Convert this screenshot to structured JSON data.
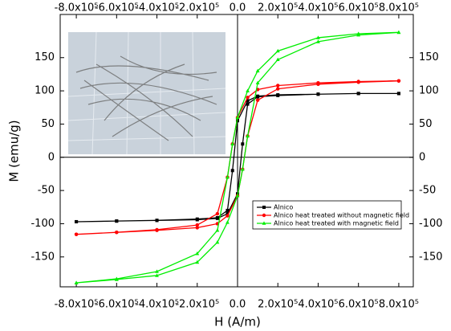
{
  "chart_data": {
    "type": "line",
    "x_label": "H (A/m)",
    "y_label": "M (emu/g)",
    "xlim": [
      -880000,
      872000
    ],
    "ylim": [
      -195,
      215
    ],
    "xticks": [
      {
        "value": -800000,
        "label": "-8.0x10⁵"
      },
      {
        "value": -600000,
        "label": "-6.0x10⁵"
      },
      {
        "value": -400000,
        "label": "-4.0x10⁵"
      },
      {
        "value": -200000,
        "label": "-2.0x10⁵"
      },
      {
        "value": 0,
        "label": "0.0"
      },
      {
        "value": 200000,
        "label": "2.0x10⁵"
      },
      {
        "value": 400000,
        "label": "4.0x10⁵"
      },
      {
        "value": 600000,
        "label": "6.0x10⁵"
      },
      {
        "value": 800000,
        "label": "8.0x10⁵"
      }
    ],
    "yticks": [
      -150,
      -100,
      -50,
      0,
      50,
      100,
      150
    ],
    "series": [
      {
        "name": "Alnico",
        "color": "#000000",
        "marker": "square",
        "x": [
          800000,
          600000,
          400000,
          200000,
          100000,
          50000,
          0,
          -25000,
          -50000,
          -100000,
          -200000,
          -400000,
          -600000,
          -800000,
          -800000,
          -600000,
          -400000,
          -200000,
          -100000,
          -50000,
          0,
          25000,
          50000,
          100000,
          200000,
          400000,
          600000,
          800000
        ],
        "values": [
          96,
          96,
          95,
          94,
          92,
          85,
          55,
          -20,
          -80,
          -91,
          -93,
          -95,
          -96,
          -97,
          -97,
          -96,
          -95,
          -94,
          -92,
          -85,
          -55,
          20,
          80,
          91,
          93,
          95,
          96,
          96
        ]
      },
      {
        "name": "Alnico heat treated without magnetic field",
        "color": "#ff0000",
        "marker": "circle",
        "x": [
          800000,
          600000,
          400000,
          200000,
          100000,
          50000,
          0,
          -25000,
          -50000,
          -100000,
          -200000,
          -400000,
          -600000,
          -800000,
          -800000,
          -600000,
          -400000,
          -200000,
          -100000,
          -50000,
          0,
          25000,
          50000,
          100000,
          200000,
          400000,
          600000,
          800000
        ],
        "values": [
          115,
          114,
          112,
          108,
          102,
          90,
          60,
          20,
          -30,
          -85,
          -102,
          -109,
          -113,
          -116,
          -116,
          -113,
          -110,
          -106,
          -100,
          -88,
          -58,
          -18,
          32,
          86,
          103,
          110,
          113,
          115
        ]
      },
      {
        "name": "Alnico heat treated with magnetic field",
        "color": "#00ee00",
        "marker": "triangle",
        "x": [
          800000,
          600000,
          400000,
          200000,
          100000,
          50000,
          0,
          -25000,
          -50000,
          -100000,
          -200000,
          -400000,
          -600000,
          -800000,
          -800000,
          -600000,
          -400000,
          -200000,
          -100000,
          -50000,
          0,
          25000,
          50000,
          100000,
          200000,
          400000,
          600000,
          800000
        ],
        "values": [
          188,
          186,
          180,
          160,
          130,
          100,
          60,
          20,
          -30,
          -110,
          -145,
          -172,
          -183,
          -189,
          -189,
          -184,
          -178,
          -158,
          -128,
          -98,
          -58,
          -18,
          32,
          112,
          147,
          174,
          184,
          188
        ]
      }
    ],
    "legend": "lower-right"
  }
}
